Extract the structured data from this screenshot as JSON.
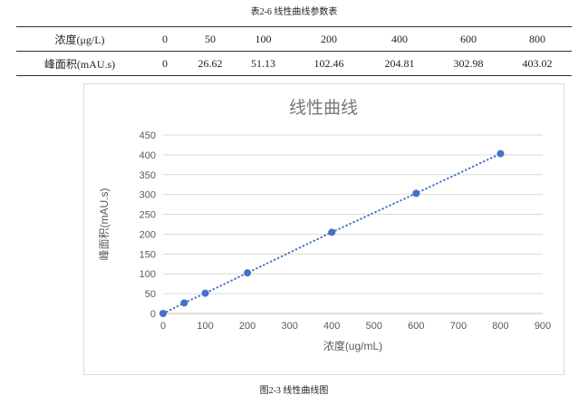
{
  "table": {
    "title": "表2-6 线性曲线参数表",
    "rows": [
      {
        "label": "浓度(μg/L)",
        "values": [
          "0",
          "50",
          "100",
          "200",
          "400",
          "600",
          "800"
        ]
      },
      {
        "label": "峰面积(mAU.s)",
        "values": [
          "0",
          "26.62",
          "51.13",
          "102.46",
          "204.81",
          "302.98",
          "403.02"
        ]
      }
    ]
  },
  "chart_data": {
    "type": "scatter",
    "title": "线性曲线",
    "xlabel": "浓度(ug/mL)",
    "ylabel": "峰面积(mAU.s)",
    "x": [
      0,
      50,
      100,
      200,
      400,
      600,
      800
    ],
    "y": [
      0,
      26.62,
      51.13,
      102.46,
      204.81,
      302.98,
      403.02
    ],
    "xlim": [
      0,
      900
    ],
    "ylim": [
      0,
      450
    ],
    "x_ticks": [
      0,
      100,
      200,
      300,
      400,
      500,
      600,
      700,
      800,
      900
    ],
    "y_ticks": [
      0,
      50,
      100,
      150,
      200,
      250,
      300,
      350,
      400,
      450
    ],
    "grid": "horizontal",
    "legend_position": "none",
    "line_style": "dotted",
    "marker": "circle",
    "marker_color": "#4472C4",
    "line_color": "#4472C4",
    "gridline_color": "#d9d9d9",
    "axis_line_color": "#bfbfbf",
    "title_color": "#787878",
    "axis_text_color": "#595959"
  },
  "caption": "图2-3 线性曲线图"
}
